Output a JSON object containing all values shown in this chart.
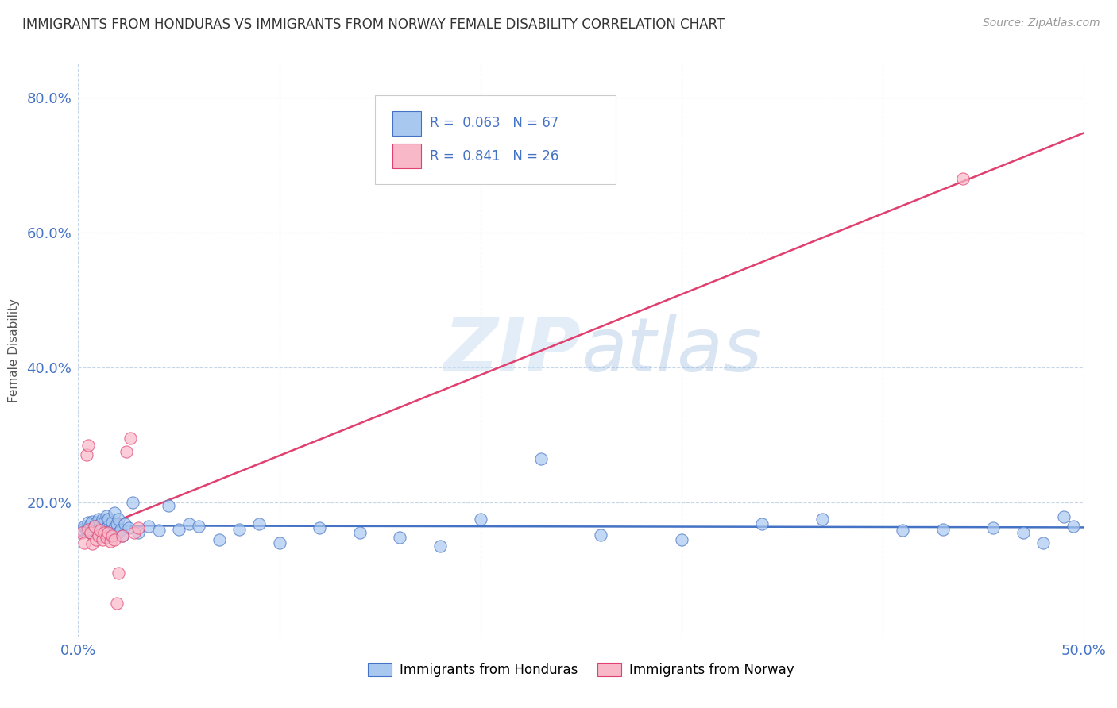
{
  "title": "IMMIGRANTS FROM HONDURAS VS IMMIGRANTS FROM NORWAY FEMALE DISABILITY CORRELATION CHART",
  "source": "Source: ZipAtlas.com",
  "ylabel": "Female Disability",
  "xlim": [
    0.0,
    0.5
  ],
  "ylim": [
    0.0,
    0.85
  ],
  "legend_R_honduras": "0.063",
  "legend_N_honduras": "67",
  "legend_R_norway": "0.841",
  "legend_N_norway": "26",
  "color_honduras": "#a8c8f0",
  "color_norway": "#f8b8c8",
  "line_color_honduras": "#4472c4",
  "line_color_norway": "#e04070",
  "honduras_x": [
    0.002,
    0.003,
    0.004,
    0.005,
    0.005,
    0.006,
    0.006,
    0.007,
    0.007,
    0.008,
    0.008,
    0.009,
    0.009,
    0.01,
    0.01,
    0.01,
    0.011,
    0.011,
    0.012,
    0.012,
    0.012,
    0.013,
    0.013,
    0.014,
    0.014,
    0.015,
    0.015,
    0.016,
    0.017,
    0.018,
    0.018,
    0.019,
    0.02,
    0.02,
    0.021,
    0.022,
    0.023,
    0.025,
    0.027,
    0.03,
    0.035,
    0.04,
    0.045,
    0.05,
    0.055,
    0.06,
    0.07,
    0.08,
    0.09,
    0.1,
    0.12,
    0.14,
    0.16,
    0.18,
    0.2,
    0.23,
    0.26,
    0.3,
    0.34,
    0.37,
    0.41,
    0.43,
    0.455,
    0.47,
    0.48,
    0.49,
    0.495
  ],
  "honduras_y": [
    0.16,
    0.165,
    0.158,
    0.162,
    0.17,
    0.155,
    0.168,
    0.16,
    0.172,
    0.158,
    0.165,
    0.162,
    0.17,
    0.155,
    0.16,
    0.175,
    0.162,
    0.168,
    0.158,
    0.165,
    0.175,
    0.16,
    0.17,
    0.162,
    0.18,
    0.165,
    0.175,
    0.158,
    0.17,
    0.162,
    0.185,
    0.168,
    0.155,
    0.175,
    0.16,
    0.15,
    0.168,
    0.162,
    0.2,
    0.155,
    0.165,
    0.158,
    0.195,
    0.16,
    0.168,
    0.165,
    0.145,
    0.16,
    0.168,
    0.14,
    0.162,
    0.155,
    0.148,
    0.135,
    0.175,
    0.265,
    0.152,
    0.145,
    0.168,
    0.175,
    0.158,
    0.16,
    0.162,
    0.155,
    0.14,
    0.178,
    0.165
  ],
  "norway_x": [
    0.002,
    0.003,
    0.004,
    0.005,
    0.005,
    0.006,
    0.007,
    0.008,
    0.009,
    0.01,
    0.011,
    0.012,
    0.013,
    0.014,
    0.015,
    0.016,
    0.017,
    0.018,
    0.019,
    0.02,
    0.022,
    0.024,
    0.026,
    0.028,
    0.03,
    0.44
  ],
  "norway_y": [
    0.155,
    0.14,
    0.27,
    0.285,
    0.16,
    0.155,
    0.138,
    0.165,
    0.145,
    0.15,
    0.158,
    0.145,
    0.155,
    0.148,
    0.155,
    0.142,
    0.15,
    0.145,
    0.05,
    0.095,
    0.15,
    0.275,
    0.295,
    0.155,
    0.162,
    0.68
  ]
}
